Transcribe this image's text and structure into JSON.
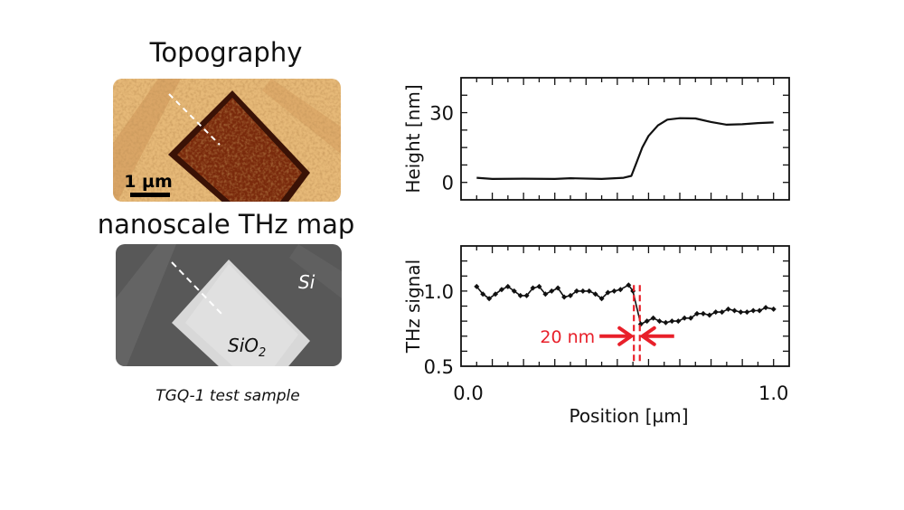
{
  "left_panel": {
    "topography_title": "Topography",
    "scale_bar_label": "1 µm",
    "thz_map_title": "nanoscale THz map",
    "si_label": "Si",
    "sio2_label_base": "SiO",
    "sio2_label_sub": "2",
    "caption": "TGQ-1 test sample"
  },
  "colors": {
    "line": "#111111",
    "annotation": "#e8202a",
    "topo_light": "#e6b978",
    "topo_dark": "#7a2a0c",
    "thz_bg": "#5a5a5a",
    "thz_square": "#dcdcdc"
  },
  "chart_data": [
    {
      "type": "line",
      "ylabel": "Height [nm]",
      "xlabel": "",
      "xlim": [
        0,
        1.05
      ],
      "ylim": [
        -7.5,
        45
      ],
      "yticks": [
        0,
        30
      ],
      "ytick_labels": [
        "0",
        "30"
      ],
      "grid": false,
      "x": [
        0.05,
        0.1,
        0.2,
        0.3,
        0.35,
        0.45,
        0.52,
        0.545,
        0.56,
        0.58,
        0.6,
        0.63,
        0.66,
        0.7,
        0.75,
        0.8,
        0.85,
        0.9,
        0.95,
        1.0
      ],
      "y": [
        2,
        1.5,
        1.6,
        1.5,
        1.8,
        1.5,
        2,
        2.8,
        8,
        15,
        20,
        24.5,
        27,
        27.6,
        27.5,
        26,
        24.8,
        25,
        25.5,
        25.8
      ]
    },
    {
      "type": "line",
      "ylabel": "THz signal",
      "xlabel": "Position [µm]",
      "xlim": [
        0,
        1.05
      ],
      "ylim": [
        0.5,
        1.3
      ],
      "xticks": [
        0.0,
        1.0
      ],
      "xtick_labels": [
        "0.0",
        "1.0"
      ],
      "yticks": [
        0.5,
        1.0
      ],
      "ytick_labels": [
        "0.5",
        "1.0"
      ],
      "grid": false,
      "markers": true,
      "x": [
        0.05,
        0.07,
        0.09,
        0.11,
        0.13,
        0.15,
        0.17,
        0.19,
        0.21,
        0.23,
        0.25,
        0.27,
        0.29,
        0.31,
        0.33,
        0.35,
        0.37,
        0.39,
        0.41,
        0.43,
        0.45,
        0.47,
        0.49,
        0.51,
        0.536,
        0.55,
        0.575,
        0.595,
        0.615,
        0.635,
        0.655,
        0.675,
        0.695,
        0.715,
        0.735,
        0.755,
        0.775,
        0.795,
        0.815,
        0.835,
        0.855,
        0.875,
        0.895,
        0.915,
        0.935,
        0.955,
        0.975,
        1.0
      ],
      "y": [
        1.03,
        0.98,
        0.95,
        0.98,
        1.01,
        1.03,
        1.0,
        0.97,
        0.97,
        1.02,
        1.03,
        0.98,
        1.0,
        1.02,
        0.96,
        0.97,
        1.0,
        1.0,
        1.0,
        0.98,
        0.95,
        0.99,
        1.0,
        1.01,
        1.04,
        1.0,
        0.78,
        0.8,
        0.82,
        0.8,
        0.79,
        0.8,
        0.8,
        0.82,
        0.82,
        0.85,
        0.85,
        0.84,
        0.86,
        0.86,
        0.88,
        0.87,
        0.86,
        0.86,
        0.87,
        0.87,
        0.89,
        0.88
      ],
      "annotation": {
        "label": "20 nm",
        "dashed_x": [
          0.553,
          0.572
        ]
      }
    }
  ]
}
